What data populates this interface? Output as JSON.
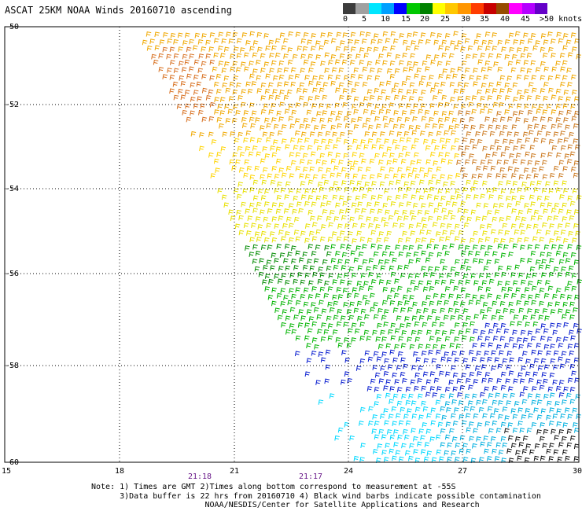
{
  "title": "ASCAT 25KM NOAA Winds 20160710 ascending",
  "colorbar": {
    "colors": [
      "#3c3c3c",
      "#a0a0a0",
      "#00e6ff",
      "#00a0ff",
      "#0000ff",
      "#00c800",
      "#008200",
      "#ffff00",
      "#ffc800",
      "#ff9600",
      "#ff3c00",
      "#c80000",
      "#964b00",
      "#ff00ff",
      "#b400ff",
      "#6400c8"
    ],
    "labels": [
      "0",
      "5",
      "10",
      "15",
      "20",
      "25",
      "30",
      "35",
      "40",
      "45",
      ">50 knots"
    ]
  },
  "axes": {
    "x_ticks": [
      "15",
      "18",
      "21",
      "24",
      "27",
      "30"
    ],
    "y_ticks": [
      "-50",
      "-52",
      "-54",
      "-56",
      "-58",
      "-60"
    ],
    "lon_range": [
      15,
      30
    ],
    "lat_range": [
      -60,
      -50
    ]
  },
  "times": [
    "21:18",
    "21:17"
  ],
  "notes": [
    "Note: 1) Times are GMT 2)Times along bottom correspond to measurement at -55S",
    "      3)Data buffer is 22 hrs from 20160710 4) Black wind barbs indicate possible contamination",
    "                        NOAA/NESDIS/Center for Satellite Applications and Research"
  ]
}
